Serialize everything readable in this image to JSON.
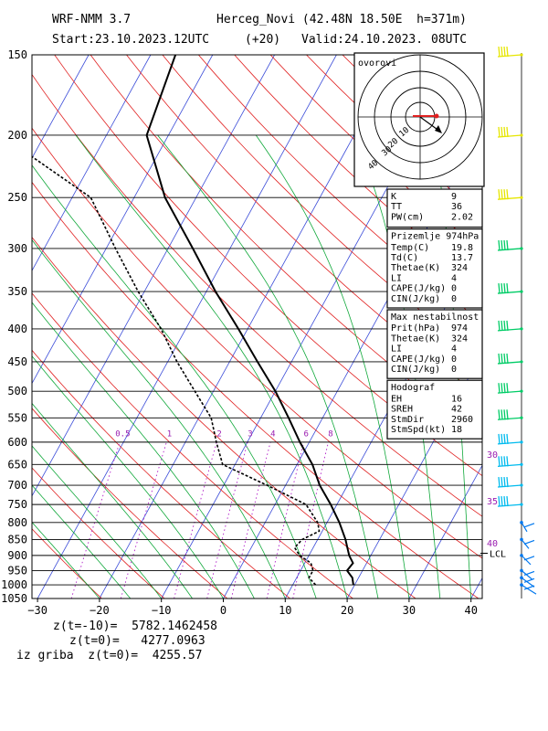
{
  "header": {
    "model": "WRF-NMM 3.7",
    "station": "Herceg_Novi (42.48N 18.50E  h=371m)",
    "start_label": "Start:23.10.2023.",
    "start_time": "12UTC",
    "lead": "(+20)",
    "valid_label": "Valid:24.10.2023.",
    "valid_time": "08UTC"
  },
  "chart_data": {
    "type": "line",
    "diagram": "skew-T log-p",
    "pressure_ticks": [
      150,
      200,
      250,
      300,
      350,
      400,
      450,
      500,
      550,
      600,
      650,
      700,
      750,
      800,
      850,
      900,
      950,
      1000,
      1050
    ],
    "temp_ticks": [
      -30,
      -20,
      -10,
      0,
      10,
      20,
      30,
      40
    ],
    "mixing_ratio_labels": [
      "0.5",
      "1",
      "2",
      "3",
      "4",
      "6",
      "8"
    ],
    "mixing_ratio_values": [
      0.5,
      1,
      2,
      3,
      4,
      6,
      8
    ],
    "series": [
      {
        "name": "temperature",
        "points": [
          [
            1000,
            19.8
          ],
          [
            975,
            19.0
          ],
          [
            950,
            17.5
          ],
          [
            925,
            17.8
          ],
          [
            900,
            16.5
          ],
          [
            875,
            15.5
          ],
          [
            850,
            14.5
          ],
          [
            800,
            12.0
          ],
          [
            750,
            9.0
          ],
          [
            700,
            5.5
          ],
          [
            650,
            2.5
          ],
          [
            600,
            -1.5
          ],
          [
            550,
            -5.5
          ],
          [
            500,
            -10.0
          ],
          [
            450,
            -15.5
          ],
          [
            400,
            -21.5
          ],
          [
            350,
            -28.5
          ],
          [
            300,
            -36.0
          ],
          [
            250,
            -45.0
          ],
          [
            200,
            -53.5
          ],
          [
            150,
            -56.0
          ]
        ]
      },
      {
        "name": "dewpoint",
        "points": [
          [
            1000,
            13.7
          ],
          [
            975,
            12.0
          ],
          [
            950,
            12.0
          ],
          [
            925,
            11.0
          ],
          [
            900,
            8.5
          ],
          [
            875,
            7.0
          ],
          [
            850,
            7.5
          ],
          [
            825,
            9.5
          ],
          [
            800,
            8.5
          ],
          [
            750,
            5.0
          ],
          [
            700,
            -3.0
          ],
          [
            650,
            -12.0
          ],
          [
            600,
            -15.0
          ],
          [
            550,
            -18.0
          ],
          [
            500,
            -23.0
          ],
          [
            450,
            -28.5
          ],
          [
            400,
            -34.0
          ],
          [
            350,
            -41.0
          ],
          [
            300,
            -48.5
          ],
          [
            250,
            -57.0
          ],
          [
            200,
            -77.0
          ],
          [
            170,
            -79.0
          ],
          [
            150,
            -82.0
          ]
        ]
      }
    ],
    "right_labels": [
      "30",
      "35",
      "40",
      "LCL"
    ],
    "wind_barb_colors": {
      "upper": "#e6e600",
      "middle": "#00cc66",
      "low": "#00bbee",
      "lowest": "#0077ee"
    }
  },
  "hodograph": {
    "title": "ovorovi",
    "ring_labels": [
      "10",
      "20",
      "30",
      "40"
    ]
  },
  "panels": {
    "indices": {
      "rows": [
        {
          "k": "K",
          "v": "9"
        },
        {
          "k": "TT",
          "v": "36"
        },
        {
          "k": "PW(cm)",
          "v": "2.02"
        }
      ]
    },
    "surface": {
      "title": "Prizemlje 974hPa",
      "rows": [
        {
          "k": "Temp(C)",
          "v": "19.8"
        },
        {
          "k": "Td(C)",
          "v": "13.7"
        },
        {
          "k": "Thetae(K)",
          "v": "324"
        },
        {
          "k": "LI",
          "v": "4"
        },
        {
          "k": "CAPE(J/kg)",
          "v": "0"
        },
        {
          "k": "CIN(J/kg)",
          "v": "0"
        }
      ]
    },
    "maxinst": {
      "title": "Max nestabilnost",
      "rows": [
        {
          "k": "Prit(hPa)",
          "v": "974"
        },
        {
          "k": "Thetae(K)",
          "v": "324"
        },
        {
          "k": "LI",
          "v": "4"
        },
        {
          "k": "CAPE(J/kg)",
          "v": "0"
        },
        {
          "k": "CIN(J/kg)",
          "v": "0"
        }
      ]
    },
    "hodograf": {
      "title": "Hodograf",
      "rows": [
        {
          "k": "EH",
          "v": "16"
        },
        {
          "k": "SREH",
          "v": "42"
        },
        {
          "k": "StmDir",
          "v": "2960"
        },
        {
          "k": "StmSpd(kt)",
          "v": "18"
        }
      ]
    }
  },
  "footer": {
    "line1": "z(t=-10)=  5782.1462458",
    "line2": "z(t=0)=   4277.0963",
    "line3": "iz griba  z(t=0)=  4255.57"
  }
}
